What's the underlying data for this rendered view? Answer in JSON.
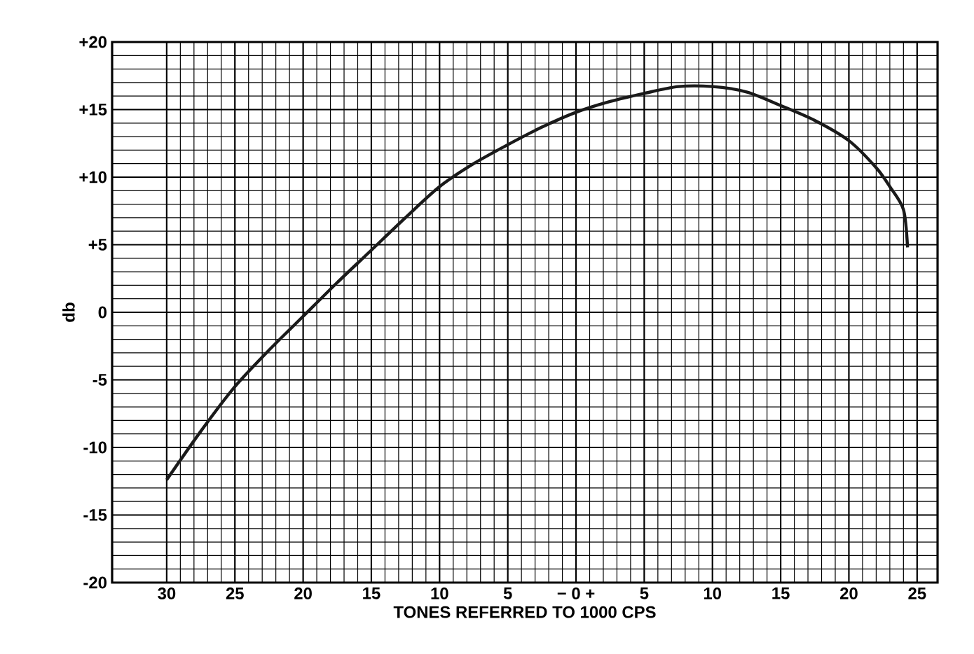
{
  "chart_data": {
    "type": "line",
    "xlabel": "TONES REFERRED TO 1000 CPS",
    "ylabel": "db",
    "x": [
      -30,
      -27.5,
      -25,
      -22.5,
      -20,
      -17.5,
      -15,
      -12.5,
      -10,
      -7.5,
      -5,
      -2.5,
      0,
      2.5,
      5,
      7.5,
      10,
      12.5,
      15,
      17.5,
      20,
      22,
      23,
      24,
      24.3
    ],
    "series": [
      {
        "color": "#1a1a1a",
        "values": [
          -12.4,
          -8.8,
          -5.5,
          -2.8,
          -0.3,
          2.2,
          4.6,
          7.0,
          9.3,
          11.0,
          12.4,
          13.7,
          14.8,
          15.6,
          16.2,
          16.7,
          16.7,
          16.3,
          15.3,
          14.2,
          12.7,
          10.7,
          9.3,
          7.6,
          4.8
        ]
      }
    ],
    "xlim": [
      -34,
      26.5
    ],
    "ylim": [
      -20,
      20
    ],
    "xticks": [
      {
        "value": -30,
        "label": "30"
      },
      {
        "value": -25,
        "label": "25"
      },
      {
        "value": -20,
        "label": "20"
      },
      {
        "value": -15,
        "label": "15"
      },
      {
        "value": -10,
        "label": "10"
      },
      {
        "value": -5,
        "label": "5"
      },
      {
        "value": 0,
        "label": "− 0 +"
      },
      5,
      10,
      15,
      20,
      25
    ],
    "yticks": [
      -20,
      -15,
      -10,
      -5,
      0,
      {
        "value": 5,
        "label": "+5"
      },
      {
        "value": 10,
        "label": "+10"
      },
      {
        "value": 15,
        "label": "+15"
      },
      {
        "value": 20,
        "label": "+20"
      }
    ],
    "grid": true,
    "marker": "none",
    "line_style": "solid"
  }
}
